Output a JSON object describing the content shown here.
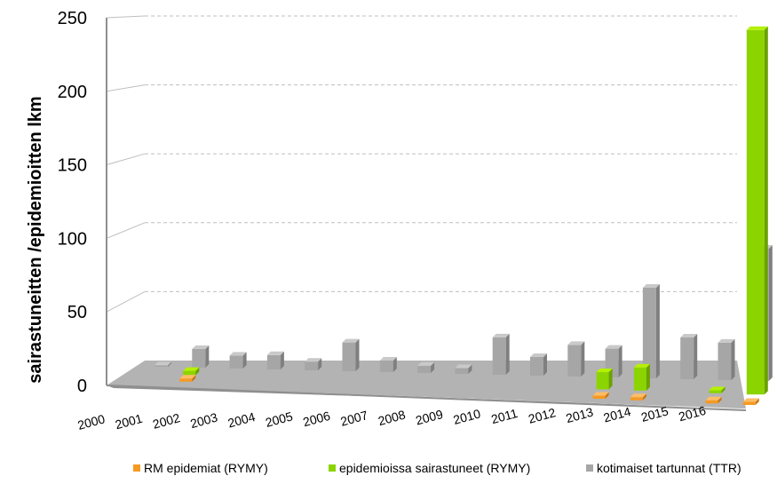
{
  "chart_data": {
    "type": "bar",
    "ylabel": "sairastuneitten /epidemioitten lkm",
    "ylim": [
      0,
      250
    ],
    "yticks": [
      "0",
      "50",
      "100",
      "150",
      "200",
      "250"
    ],
    "categories": [
      "2000",
      "2001",
      "2002",
      "2003",
      "2004",
      "2005",
      "2006",
      "2007",
      "2008",
      "2009",
      "2010",
      "2011",
      "2012",
      "2013",
      "2014",
      "2015",
      "2016"
    ],
    "series": [
      {
        "name": "RM epidemiat (RYMY)",
        "color": "#f59a23",
        "values": [
          0,
          1,
          0,
          0,
          0,
          0,
          0,
          0,
          0,
          0,
          0,
          0,
          1,
          1,
          0,
          1,
          1
        ]
      },
      {
        "name": "epidemioissa sairastuneet (RYMY)",
        "color": "#8cd400",
        "values": [
          0,
          3,
          0,
          0,
          0,
          0,
          0,
          0,
          0,
          0,
          0,
          0,
          12,
          16,
          0,
          2,
          240
        ]
      },
      {
        "name": "kotimaiset tartunnat (TTR)",
        "color": "#a6a6a6",
        "values": [
          1,
          13,
          9,
          10,
          6,
          20,
          8,
          5,
          4,
          26,
          13,
          22,
          20,
          63,
          29,
          26,
          92
        ]
      }
    ],
    "grid": true,
    "legend_position": "bottom"
  }
}
